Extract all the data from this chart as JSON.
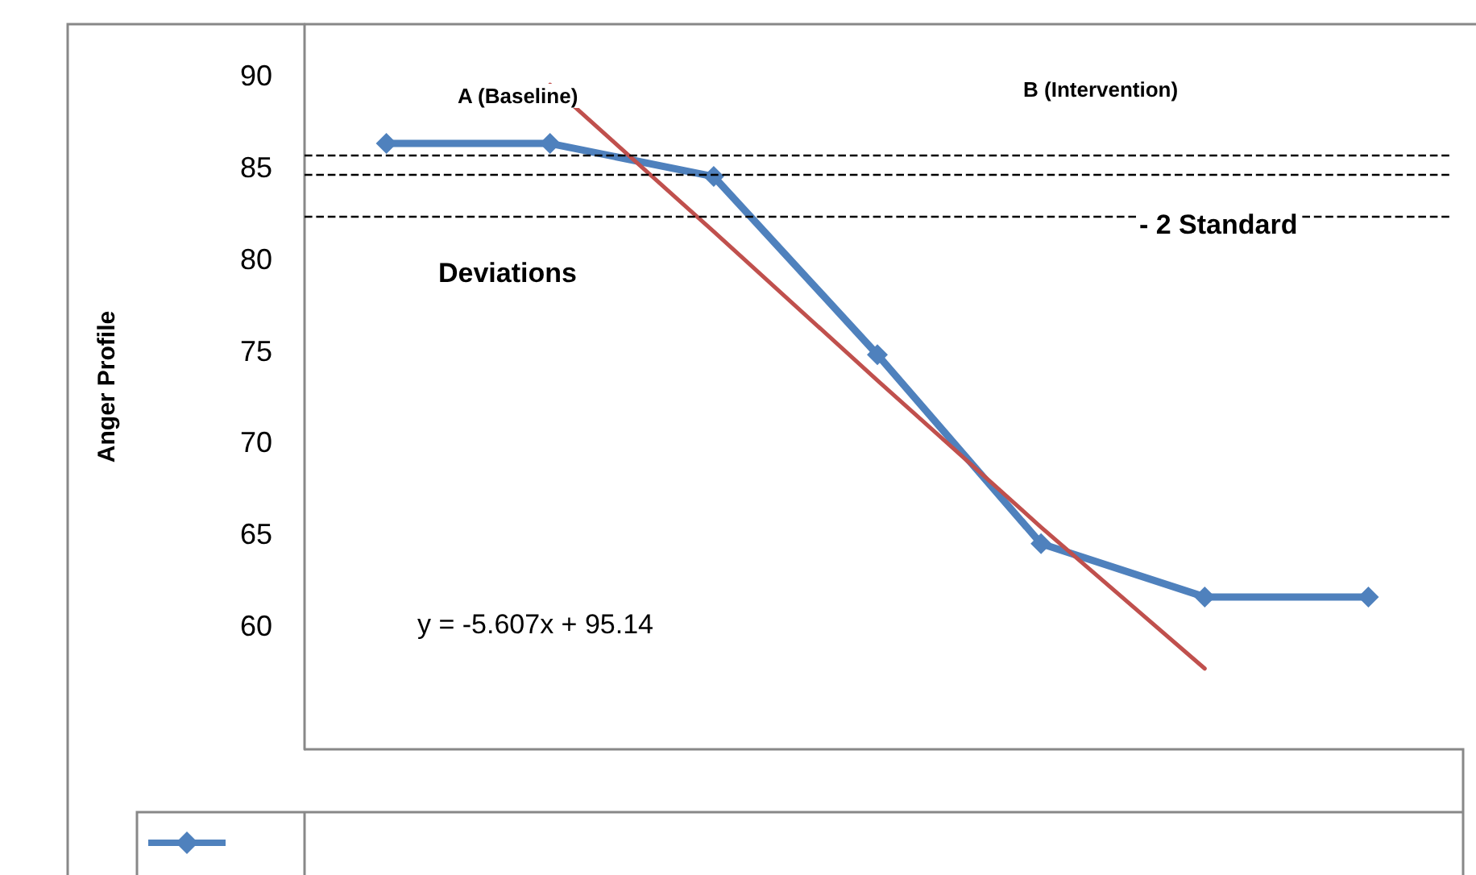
{
  "chart_data": {
    "type": "line",
    "ylabel": "Anger Profile",
    "categories": [
      null,
      null,
      null,
      null,
      null,
      null,
      null
    ],
    "ylim": [
      53.3,
      92.8
    ],
    "yticks": [
      60,
      65,
      70,
      75,
      80,
      85,
      90
    ],
    "tick_labels": "y",
    "grid": false,
    "series": [
      {
        "color": "#4f81bd",
        "marker": "diamond",
        "line_style": "solid",
        "values": [
          86.3,
          86.3,
          84.5,
          74.8,
          64.5,
          61.6,
          61.6
        ]
      },
      {
        "color": "#c0504d",
        "marker": "none",
        "line_style": "solid",
        "values": [
          null,
          89.5,
          81.5,
          73.4,
          65.4,
          57.7,
          null
        ]
      }
    ],
    "ref_lines": [
      {
        "axis": "y",
        "value": 85.7,
        "color": "#000000",
        "line_style": "dashed"
      },
      {
        "axis": "y",
        "value": 84.6,
        "color": "#000000",
        "line_style": "dashed"
      },
      {
        "axis": "y",
        "value": 82.3,
        "color": "#000000",
        "line_style": "dashed"
      }
    ],
    "annotations": [
      "A (Baseline)",
      "B (Intervention)",
      "- 2 Standard",
      "Deviations",
      "y = -5.607x + 95.14"
    ]
  }
}
